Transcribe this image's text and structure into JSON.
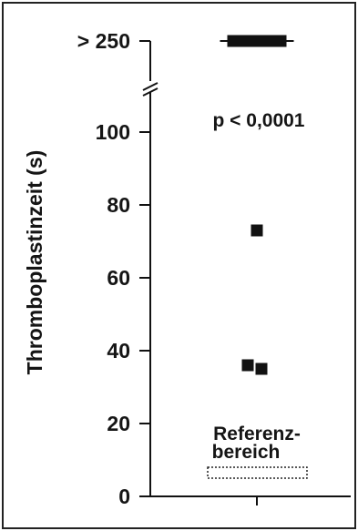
{
  "chart_data": {
    "type": "scatter",
    "ylabel": "Thromboplastinzeit (s)",
    "xlabel": "",
    "ylim": [
      0,
      110
    ],
    "y_ticks": [
      {
        "value": 0,
        "label": "0"
      },
      {
        "value": 20,
        "label": "20"
      },
      {
        "value": 40,
        "label": "40"
      },
      {
        "value": 60,
        "label": "60"
      },
      {
        "value": 80,
        "label": "80"
      },
      {
        "value": 100,
        "label": "100"
      }
    ],
    "broken_axis_tick": {
      "value": "> 250",
      "label": "> 250"
    },
    "points": [
      {
        "y": ">250",
        "count": 5
      },
      {
        "y": 73
      },
      {
        "y": 36
      },
      {
        "y": 35
      }
    ],
    "annotations": {
      "p_value": "p < 0,0001",
      "reference_label_line1": "Referenz-",
      "reference_label_line2": "bereich"
    },
    "reference_range": {
      "from": 5,
      "to": 8
    },
    "grid": false,
    "legend": "none"
  }
}
